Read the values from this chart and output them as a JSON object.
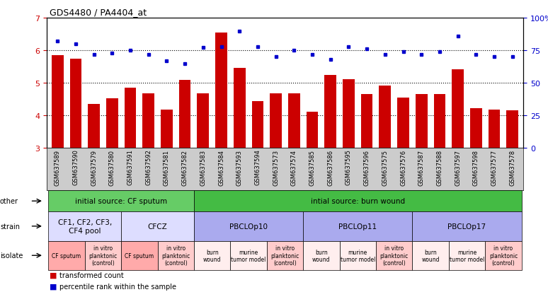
{
  "title": "GDS4480 / PA4404_at",
  "samples": [
    "GSM637589",
    "GSM637590",
    "GSM637579",
    "GSM637580",
    "GSM637591",
    "GSM637592",
    "GSM637581",
    "GSM637582",
    "GSM637583",
    "GSM637584",
    "GSM637593",
    "GSM637594",
    "GSM637573",
    "GSM637574",
    "GSM637585",
    "GSM637586",
    "GSM637595",
    "GSM637596",
    "GSM637575",
    "GSM637576",
    "GSM637587",
    "GSM637588",
    "GSM637597",
    "GSM637598",
    "GSM637577",
    "GSM637578"
  ],
  "bar_values": [
    5.85,
    5.75,
    4.35,
    4.52,
    4.85,
    4.68,
    4.18,
    5.1,
    4.68,
    6.55,
    5.45,
    4.45,
    4.68,
    4.68,
    4.12,
    5.25,
    5.12,
    4.65,
    4.92,
    4.55,
    4.65,
    4.65,
    5.42,
    4.22,
    4.18,
    4.15
  ],
  "dot_values": [
    82,
    80,
    72,
    73,
    75,
    72,
    67,
    65,
    77,
    78,
    90,
    78,
    70,
    75,
    72,
    68,
    78,
    76,
    72,
    74,
    72,
    74,
    86,
    72,
    70,
    70
  ],
  "bar_color": "#CC0000",
  "dot_color": "#0000CC",
  "ylim_left": [
    3,
    7
  ],
  "ylim_right": [
    0,
    100
  ],
  "yticks_left": [
    3,
    4,
    5,
    6,
    7
  ],
  "yticks_right": [
    0,
    25,
    50,
    75,
    100
  ],
  "ytick_labels_right": [
    "0",
    "25",
    "50",
    "75",
    "100%"
  ],
  "hlines": [
    4.0,
    5.0,
    6.0
  ],
  "other_row": [
    {
      "label": "initial source: CF sputum",
      "start": 0,
      "end": 8,
      "color": "#66CC66"
    },
    {
      "label": "intial source: burn wound",
      "start": 8,
      "end": 26,
      "color": "#44BB44"
    }
  ],
  "strain_row": [
    {
      "label": "CF1, CF2, CF3,\nCF4 pool",
      "start": 0,
      "end": 4,
      "color": "#DDDDFF"
    },
    {
      "label": "CFCZ",
      "start": 4,
      "end": 8,
      "color": "#DDDDFF"
    },
    {
      "label": "PBCLOp10",
      "start": 8,
      "end": 14,
      "color": "#AAAAEE"
    },
    {
      "label": "PBCLOp11",
      "start": 14,
      "end": 20,
      "color": "#AAAAEE"
    },
    {
      "label": "PBCLOp17",
      "start": 20,
      "end": 26,
      "color": "#AAAAEE"
    }
  ],
  "isolate_row": [
    {
      "label": "CF sputum",
      "start": 0,
      "end": 2,
      "color": "#FFAAAA"
    },
    {
      "label": "in vitro\nplanktonic\n(control)",
      "start": 2,
      "end": 4,
      "color": "#FFCCCC"
    },
    {
      "label": "CF sputum",
      "start": 4,
      "end": 6,
      "color": "#FFAAAA"
    },
    {
      "label": "in vitro\nplanktonic\n(control)",
      "start": 6,
      "end": 8,
      "color": "#FFCCCC"
    },
    {
      "label": "burn\nwound",
      "start": 8,
      "end": 10,
      "color": "#FFEEEE"
    },
    {
      "label": "murine\ntumor model",
      "start": 10,
      "end": 12,
      "color": "#FFEEEE"
    },
    {
      "label": "in vitro\nplanktonic\n(control)",
      "start": 12,
      "end": 14,
      "color": "#FFCCCC"
    },
    {
      "label": "burn\nwound",
      "start": 14,
      "end": 16,
      "color": "#FFEEEE"
    },
    {
      "label": "murine\ntumor model",
      "start": 16,
      "end": 18,
      "color": "#FFEEEE"
    },
    {
      "label": "in vitro\nplanktonic\n(control)",
      "start": 18,
      "end": 20,
      "color": "#FFCCCC"
    },
    {
      "label": "burn\nwound",
      "start": 20,
      "end": 22,
      "color": "#FFEEEE"
    },
    {
      "label": "murine\ntumor model",
      "start": 22,
      "end": 24,
      "color": "#FFEEEE"
    },
    {
      "label": "in vitro\nplanktonic\n(control)",
      "start": 24,
      "end": 26,
      "color": "#FFCCCC"
    }
  ],
  "legend_bar_label": "transformed count",
  "legend_dot_label": "percentile rank within the sample",
  "bg_color": "#FFFFFF",
  "tick_color_left": "#CC0000",
  "tick_color_right": "#0000CC",
  "gray_bg": "#CCCCCC"
}
